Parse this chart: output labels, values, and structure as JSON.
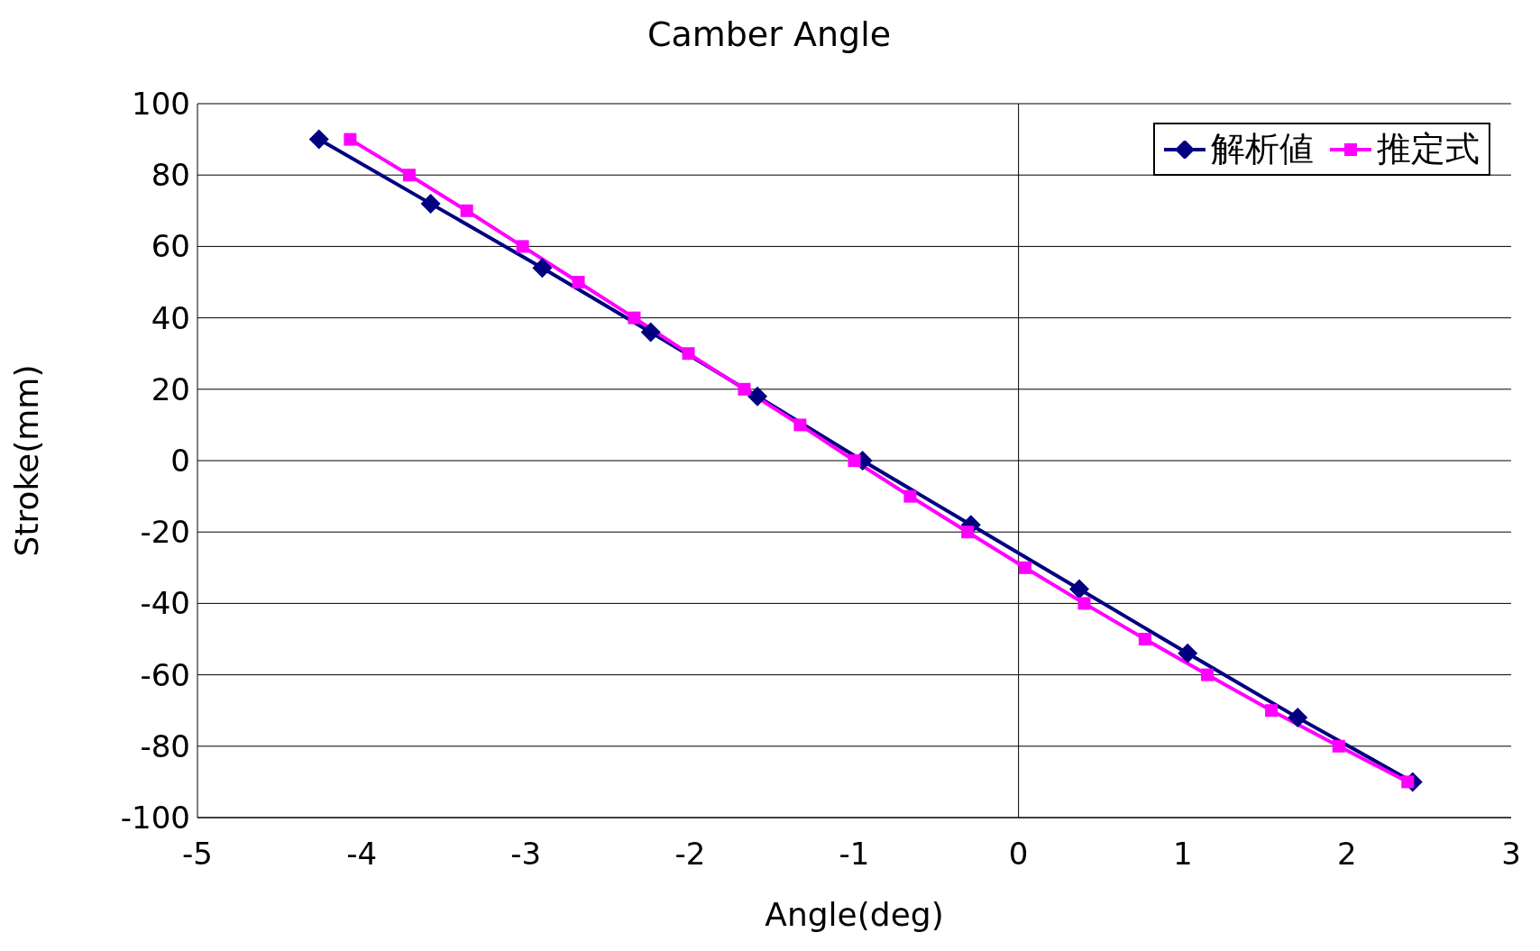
{
  "chart_data": {
    "type": "line",
    "title": "Camber Angle",
    "xlabel": "Angle(deg)",
    "ylabel": "Stroke(mm)",
    "xlim": [
      -5,
      3
    ],
    "xticks": [
      -5,
      -4,
      -3,
      -2,
      -1,
      0,
      1,
      2,
      3
    ],
    "ylim": [
      -100,
      100
    ],
    "yticks": [
      -100,
      -80,
      -60,
      -40,
      -20,
      0,
      20,
      40,
      60,
      80,
      100
    ],
    "grid": "y",
    "legend": "top right",
    "line_style": "solid",
    "ref_lines": [
      {
        "axis": "x",
        "value": 0,
        "color": "#000000"
      }
    ],
    "series": [
      {
        "name": "解析値",
        "color": "#000080",
        "marker": "diamond",
        "x": [
          -4.26,
          -3.58,
          -2.9,
          -2.24,
          -1.59,
          -0.95,
          -0.29,
          0.37,
          1.03,
          1.7,
          2.4
        ],
        "values": [
          90,
          72,
          54,
          36,
          18,
          0,
          -18,
          -36,
          -54,
          -72,
          -90
        ]
      },
      {
        "name": "推定式",
        "color": "#ff00ff",
        "marker": "square",
        "x": [
          -4.07,
          -3.71,
          -3.36,
          -3.02,
          -2.68,
          -2.34,
          -2.01,
          -1.67,
          -1.33,
          -1.0,
          -0.66,
          -0.31,
          0.04,
          0.4,
          0.77,
          1.15,
          1.54,
          1.95,
          2.37
        ],
        "values": [
          90,
          80,
          70,
          60,
          50,
          40,
          30,
          20,
          10,
          0,
          -10,
          -20,
          -30,
          -40,
          -50,
          -60,
          -70,
          -80,
          -90
        ]
      }
    ]
  }
}
